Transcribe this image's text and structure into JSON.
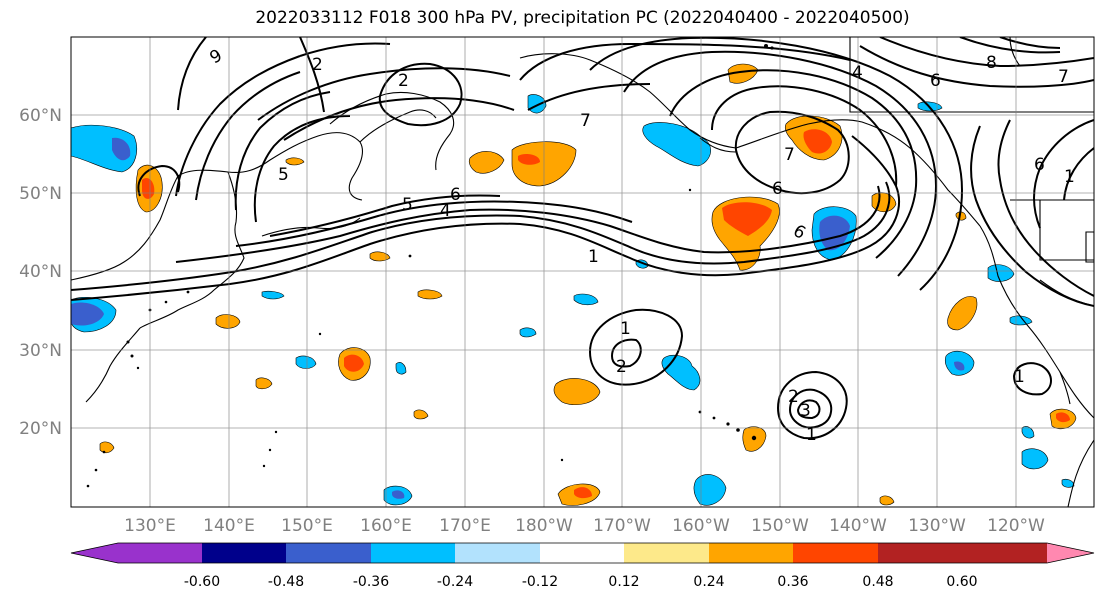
{
  "title": "2022033112 F018 300 hPa PV, precipitation PC (2022040400 - 2022040500)",
  "lat_labels": [
    "60°N",
    "50°N",
    "40°N",
    "30°N",
    "20°N"
  ],
  "lon_labels": [
    "130°E",
    "140°E",
    "150°E",
    "160°E",
    "170°E",
    "180°W",
    "170°W",
    "160°W",
    "150°W",
    "140°W",
    "130°W",
    "120°W"
  ],
  "colorbar": {
    "colors": [
      "#9932cc",
      "#00008b",
      "#3a5fcd",
      "#00bfff",
      "#b2e2fd",
      "#ffffff",
      "#fde98a",
      "#ffa500",
      "#ff4500",
      "#b22222",
      "#ff88b0"
    ],
    "tick_labels": [
      "-0.60",
      "-0.48",
      "-0.36",
      "-0.24",
      "-0.12",
      "0.12",
      "0.24",
      "0.36",
      "0.48",
      "0.60"
    ]
  },
  "pv_contour_labels": [
    "9",
    "2",
    "2",
    "7",
    "5",
    "6",
    "5",
    "4",
    "6",
    "7",
    "6",
    "6",
    "4",
    "6",
    "8",
    "7",
    "1",
    "1",
    "2",
    "1",
    "3",
    "2",
    "1",
    "1"
  ]
}
